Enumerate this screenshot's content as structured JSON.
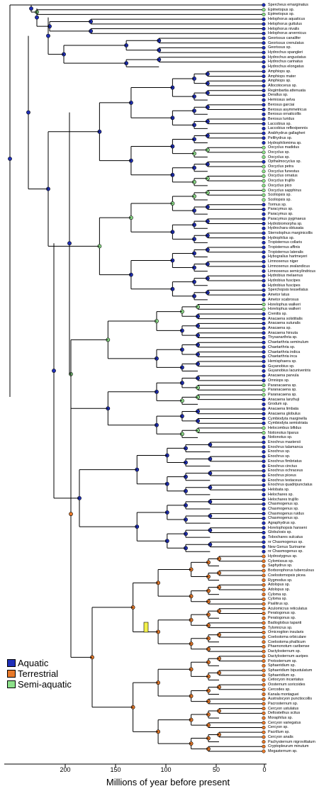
{
  "colors": {
    "aquatic": "#1f2fb8",
    "terrestrial": "#e87a2a",
    "semi_aquatic": "#8de08a",
    "branch": "#000000",
    "transition": "#f2f04a"
  },
  "legend": {
    "items": [
      {
        "label": "Aquatic",
        "color": "#1f2fb8"
      },
      {
        "label": "Terrestrial",
        "color": "#e87a2a"
      },
      {
        "label": "Semi-aquatic",
        "color": "#8de08a"
      }
    ]
  },
  "axis": {
    "title": "Millions of year before present",
    "ticks": [
      "200",
      "150",
      "100",
      "50",
      "0"
    ]
  },
  "taxa": [
    "Spercheus emarginatus",
    "Epimetopus sp.",
    "Epimetopus sp.",
    "Helophorus aquaticus",
    "Helophorus guttulus",
    "Helophorus nivalis",
    "Helophorus arvernicus",
    "Georissus canalifer",
    "Georissus crenulatus",
    "Georissus sp.",
    "Hydrochus spangleri",
    "Hydrochus angustatus",
    "Hydrochus carinatus",
    "Hydrochus elongatus",
    "Amphiops sp.",
    "Amphiops mater",
    "Amphiops sp.",
    "Allocotocerus sp.",
    "Regimbartia attenuata",
    "Derallus sp.",
    "Hemiosus selva",
    "Berosus garciai",
    "Berosus asymmetricus",
    "Berosus ornaticollis",
    "Berosus luridus",
    "Laccobius sp.",
    "Laccobius reflexipennis",
    "Arabhydrus gallagheri",
    "Pelthydrus sp.",
    "Hydrophilomima sp.",
    "Oocyclus madidus",
    "Oocyclus sp.",
    "Oocyclus sp.",
    "Opthalmocyclus sp.",
    "Oocyclus petra",
    "Oocyclus funestus",
    "Oocyclus ornatus",
    "Oocyclus trujillo",
    "Oocyclus pico",
    "Oocyclus sapphirus",
    "Scoliopsis sp.",
    "Scoliopsis sp.",
    "Tormus sp.",
    "Paracymus sp.",
    "Paracymus sp.",
    "Paracymus pygmaeus",
    "Hydrobiomorpha sp.",
    "Hydrochara obtusata",
    "Sternolophus marginicollis",
    "Hydrophilus sp.",
    "Tropisternus collaris",
    "Tropisternus affinis",
    "Tropisternus lateralis",
    "Hybogralius hartmeyeri",
    "Limnoxenus niger",
    "Limnoxenus zealandicus",
    "Limnoxenus semicylindricus",
    "Hydrobius melaenus",
    "Hydrobius fuscipes",
    "Hydrobius fuscipes",
    "Sperchopsis tessellatus",
    "Ametor latus",
    "Ametor scabrosus",
    "Horelophus walkeri",
    "Horelophus walkeri",
    "Crenitis sp.",
    "Anacaena solstitialis",
    "Anacaena suturalis",
    "Anacaena sp.",
    "Anacaena hirsuta",
    "Thysanarthria sp.",
    "Chaetarthria seminulum",
    "Chaetarthria sp.",
    "Chaetarthria indica",
    "Chaetarthria inca",
    "Hemisphaera sp.",
    "Guyanobius sp.",
    "Guyanobius lacuniventris",
    "Anacaena parvula",
    "Omniops sp.",
    "Paranacaena sp.",
    "Paranacaena sp.",
    "Paranacaena sp.",
    "Anacaena lanzhuji",
    "Grodum sp.",
    "Anacaena limbata",
    "Anacaena globulus",
    "Cymbiodyta marginella",
    "Cymbiodyta semistriata",
    "Helocombus bifidus",
    "Notionotus liparus",
    "Notionotus sp.",
    "Enochrus mastersii",
    "Enochrus talamanca",
    "Enochrus sp.",
    "Enochrus sp.",
    "Enochrus fimbriatus",
    "Enochrus cinctus",
    "Enochrus ochraceus",
    "Enochrus piceus",
    "Enochrus testaceus",
    "Enochrus quadripunctatus",
    "Helobata sp.",
    "Helochares sp.",
    "Helochares trujillo",
    "Chasmogenus sp.",
    "Chasmogenus sp.",
    "Chasmogenus ruidus",
    "Chasmogenus sp.",
    "Agraphydrus sp.",
    "Horelophopsis hanseni",
    "Globulosis sp.",
    "Tobochares sulcatus",
    "nr Chasmogenus sp.",
    "New Genus Suriname",
    "nr Chasmogenus sp.",
    "Hydrostygnus sp.",
    "Cylomissus sp.",
    "Saphydrus sp.",
    "Borborophorus tuberculous",
    "Coelostomopsis picea",
    "Rygmodus sp.",
    "Adolopus sp.",
    "Adolopus sp.",
    "Cyloma sp.",
    "Cyloma sp.",
    "Psalitrus sp.",
    "Aculomicrus reticulatus",
    "Peratogonus sp.",
    "Peratogonus sp.",
    "Badioglobus tapanti",
    "Tylomicrus sp.",
    "Omicrogiton insularis",
    "Coelostoma orbiculare",
    "Coelostoma phallicum",
    "Phaenonotum caribense",
    "Dactylosternum sp.",
    "Dactylosternum auripes",
    "Protosternum sp.",
    "Sphaeridium sp.",
    "Sphaeridium bipustulatum",
    "Sphaeridium sp.",
    "Cetiocyon incantatus",
    "Oosternum soricoides",
    "Cercodes sp.",
    "Kanala montaguei",
    "Australocyon punctiocollis",
    "Pacrosternum sp.",
    "Cercyon ustulatus",
    "Deltostethus scitus",
    "Moraphilus sp.",
    "Cercyon variegatus",
    "Cercyon sp.",
    "Pacrillum sp.",
    "Cercyon analis",
    "Pachysternum nigrovittatum",
    "Cryptopleurum minutum",
    "Megasternum sp."
  ]
}
